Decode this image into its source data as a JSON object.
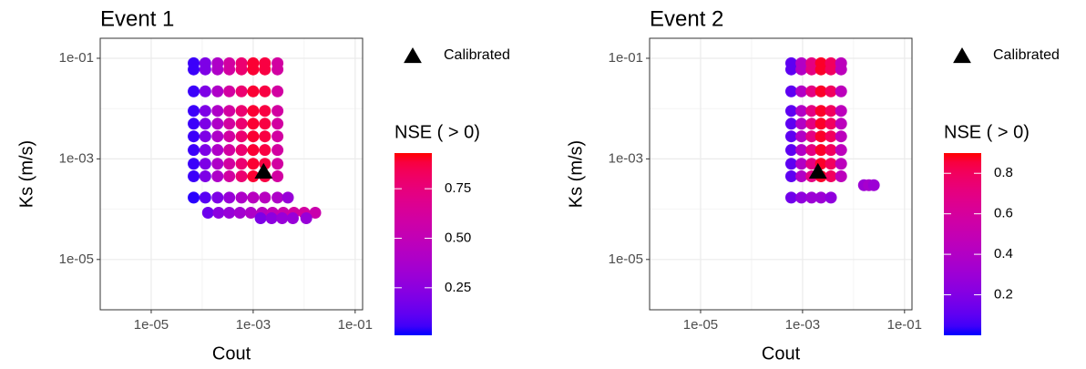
{
  "chart_data": [
    {
      "type": "scatter",
      "title": "Event 1",
      "x_label": "Cout",
      "y_label": "Ks (m/s)",
      "log_x": true,
      "log_y": true,
      "grid": true,
      "xlim": [
        1e-06,
        0.14
      ],
      "ylim": [
        1e-06,
        0.25
      ],
      "xticks": [
        {
          "value": 1e-05,
          "label": "1e-05"
        },
        {
          "value": 0.001,
          "label": "1e-03"
        },
        {
          "value": 0.1,
          "label": "1e-01"
        }
      ],
      "yticks": [
        {
          "value": 1e-05,
          "label": "1e-05"
        },
        {
          "value": 0.001,
          "label": "1e-03"
        },
        {
          "value": 0.1,
          "label": "1e-01"
        }
      ],
      "color_title": "NSE ( > 0)",
      "color_low": "#0000ff",
      "color_high": "#ff0000",
      "colorlim": [
        0.01,
        0.93
      ],
      "colorticks": [
        0.25,
        {
          "value": 0.5,
          "label": "0.50"
        },
        0.75
      ],
      "calibrated": {
        "name": "Calibrated",
        "x": 0.0016,
        "y": 0.00057,
        "color": "#000000"
      },
      "x": [
        6.8e-05,
        0.000115,
        0.0002,
        0.00034,
        0.00059,
        0.001,
        0.0017,
        0.003,
        6.8e-05,
        0.000115,
        0.0002,
        0.00034,
        0.00059,
        0.001,
        0.0017,
        0.003,
        6.8e-05,
        0.000115,
        0.0002,
        0.00034,
        0.00059,
        0.001,
        0.0017,
        0.003,
        6.8e-05,
        0.000115,
        0.0002,
        0.00034,
        0.00059,
        0.001,
        0.0017,
        0.003,
        6.8e-05,
        0.000115,
        0.0002,
        0.00034,
        0.00059,
        0.001,
        0.0017,
        0.003,
        6.8e-05,
        0.000115,
        0.0002,
        0.00034,
        0.00059,
        0.001,
        0.0017,
        0.003,
        6.8e-05,
        0.000115,
        0.0002,
        0.00034,
        0.00059,
        0.001,
        0.0017,
        0.003,
        6.8e-05,
        0.000115,
        0.0002,
        0.00034,
        0.00059,
        0.001,
        0.0017,
        0.003,
        6.8e-05,
        0.000115,
        0.0002,
        0.00034,
        0.00059,
        0.001,
        0.0017,
        0.003,
        6.8e-05,
        0.000115,
        0.0002,
        0.00034,
        0.00059,
        0.001,
        0.0017,
        0.003,
        0.0048,
        0.00013,
        0.00021,
        0.00034,
        0.00055,
        0.0009,
        0.0015,
        0.0024,
        0.0039,
        0.0063,
        0.01,
        0.0165,
        0.0014,
        0.0023,
        0.0037,
        0.006,
        0.011
      ],
      "y": [
        0.08,
        0.08,
        0.08,
        0.08,
        0.08,
        0.08,
        0.08,
        0.08,
        0.06,
        0.06,
        0.06,
        0.06,
        0.06,
        0.06,
        0.06,
        0.06,
        0.022,
        0.022,
        0.022,
        0.022,
        0.022,
        0.022,
        0.022,
        0.022,
        0.009,
        0.009,
        0.009,
        0.009,
        0.009,
        0.009,
        0.009,
        0.009,
        0.005,
        0.005,
        0.005,
        0.005,
        0.005,
        0.005,
        0.005,
        0.005,
        0.0028,
        0.0028,
        0.0028,
        0.0028,
        0.0028,
        0.0028,
        0.0028,
        0.0028,
        0.0015,
        0.0015,
        0.0015,
        0.0015,
        0.0015,
        0.0015,
        0.0015,
        0.0015,
        0.0008,
        0.0008,
        0.0008,
        0.0008,
        0.0008,
        0.0008,
        0.0008,
        0.0008,
        0.00045,
        0.00045,
        0.00045,
        0.00045,
        0.00045,
        0.00045,
        0.00045,
        0.00045,
        0.00017,
        0.00017,
        0.00017,
        0.00017,
        0.00017,
        0.00017,
        0.00017,
        0.00017,
        0.00017,
        8.5e-05,
        8.5e-05,
        8.5e-05,
        8.5e-05,
        8.5e-05,
        8.5e-05,
        8.5e-05,
        8.5e-05,
        8.5e-05,
        8.5e-05,
        8.5e-05,
        6.6e-05,
        6.6e-05,
        6.6e-05,
        6.6e-05,
        6.6e-05
      ],
      "nse": [
        0.05,
        0.2,
        0.4,
        0.6,
        0.78,
        0.9,
        0.88,
        0.6,
        0.05,
        0.2,
        0.4,
        0.6,
        0.78,
        0.9,
        0.88,
        0.6,
        0.05,
        0.2,
        0.4,
        0.6,
        0.78,
        0.9,
        0.88,
        0.6,
        0.05,
        0.2,
        0.4,
        0.6,
        0.78,
        0.9,
        0.88,
        0.6,
        0.05,
        0.2,
        0.4,
        0.6,
        0.78,
        0.9,
        0.88,
        0.6,
        0.05,
        0.2,
        0.4,
        0.6,
        0.78,
        0.9,
        0.88,
        0.6,
        0.05,
        0.2,
        0.4,
        0.6,
        0.78,
        0.9,
        0.88,
        0.6,
        0.05,
        0.2,
        0.4,
        0.6,
        0.78,
        0.9,
        0.88,
        0.6,
        0.05,
        0.2,
        0.4,
        0.6,
        0.78,
        0.9,
        0.88,
        0.6,
        0.03,
        0.1,
        0.2,
        0.3,
        0.4,
        0.45,
        0.45,
        0.4,
        0.3,
        0.15,
        0.25,
        0.3,
        0.35,
        0.4,
        0.45,
        0.5,
        0.55,
        0.6,
        0.6,
        0.55,
        0.2,
        0.25,
        0.3,
        0.3,
        0.3
      ]
    },
    {
      "type": "scatter",
      "title": "Event 2",
      "x_label": "Cout",
      "y_label": "Ks (m/s)",
      "log_x": true,
      "log_y": true,
      "grid": true,
      "xlim": [
        1e-06,
        0.14
      ],
      "ylim": [
        1e-06,
        0.25
      ],
      "xticks": [
        {
          "value": 1e-05,
          "label": "1e-05"
        },
        {
          "value": 0.001,
          "label": "1e-03"
        },
        {
          "value": 0.1,
          "label": "1e-01"
        }
      ],
      "yticks": [
        {
          "value": 1e-05,
          "label": "1e-05"
        },
        {
          "value": 0.001,
          "label": "1e-03"
        },
        {
          "value": 0.1,
          "label": "1e-01"
        }
      ],
      "color_title": "NSE ( > 0)",
      "color_low": "#0000ff",
      "color_high": "#ff0000",
      "colorlim": [
        0,
        0.9
      ],
      "colorticks": [
        0.2,
        0.4,
        0.6,
        0.8
      ],
      "calibrated": {
        "name": "Calibrated",
        "x": 0.002,
        "y": 0.00057,
        "color": "#000000"
      },
      "x": [
        0.0006,
        0.00095,
        0.0015,
        0.0023,
        0.0036,
        0.0057,
        0.0006,
        0.00095,
        0.0015,
        0.0023,
        0.0036,
        0.0057,
        0.0006,
        0.00095,
        0.0015,
        0.0023,
        0.0036,
        0.0057,
        0.0006,
        0.00095,
        0.0015,
        0.0023,
        0.0036,
        0.0057,
        0.0006,
        0.00095,
        0.0015,
        0.0023,
        0.0036,
        0.0057,
        0.0006,
        0.00095,
        0.0015,
        0.0023,
        0.0036,
        0.0057,
        0.0006,
        0.00095,
        0.0015,
        0.0023,
        0.0036,
        0.0057,
        0.0006,
        0.00095,
        0.0015,
        0.0023,
        0.0036,
        0.0057,
        0.0006,
        0.00095,
        0.0015,
        0.0023,
        0.0036,
        0.0057,
        0.0006,
        0.00095,
        0.0015,
        0.0023,
        0.0036,
        0.016,
        0.02,
        0.025
      ],
      "y": [
        0.08,
        0.08,
        0.08,
        0.08,
        0.08,
        0.08,
        0.06,
        0.06,
        0.06,
        0.06,
        0.06,
        0.06,
        0.022,
        0.022,
        0.022,
        0.022,
        0.022,
        0.022,
        0.009,
        0.009,
        0.009,
        0.009,
        0.009,
        0.009,
        0.005,
        0.005,
        0.005,
        0.005,
        0.005,
        0.005,
        0.0028,
        0.0028,
        0.0028,
        0.0028,
        0.0028,
        0.0028,
        0.0015,
        0.0015,
        0.0015,
        0.0015,
        0.0015,
        0.0015,
        0.0008,
        0.0008,
        0.0008,
        0.0008,
        0.0008,
        0.0008,
        0.00045,
        0.00045,
        0.00045,
        0.00045,
        0.00045,
        0.00045,
        0.00017,
        0.00017,
        0.00017,
        0.00017,
        0.00017,
        0.0003,
        0.0003,
        0.0003
      ],
      "nse": [
        0.1,
        0.4,
        0.7,
        0.88,
        0.8,
        0.45,
        0.1,
        0.4,
        0.7,
        0.88,
        0.8,
        0.45,
        0.1,
        0.4,
        0.7,
        0.88,
        0.8,
        0.45,
        0.1,
        0.4,
        0.7,
        0.88,
        0.8,
        0.45,
        0.1,
        0.4,
        0.7,
        0.88,
        0.8,
        0.45,
        0.1,
        0.4,
        0.7,
        0.88,
        0.8,
        0.45,
        0.1,
        0.4,
        0.7,
        0.88,
        0.8,
        0.45,
        0.1,
        0.4,
        0.7,
        0.88,
        0.8,
        0.45,
        0.1,
        0.4,
        0.7,
        0.88,
        0.8,
        0.45,
        0.15,
        0.25,
        0.3,
        0.3,
        0.25,
        0.3,
        0.35,
        0.3
      ]
    }
  ]
}
